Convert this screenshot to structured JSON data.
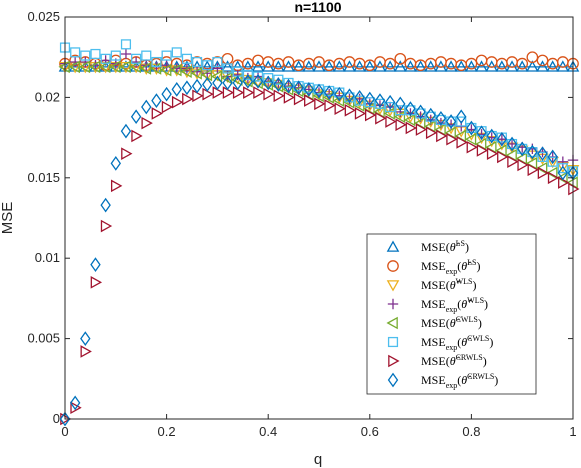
{
  "chart_data": {
    "type": "scatter",
    "title": "n=1100",
    "xlabel": "q",
    "ylabel": "MSE",
    "xlim": [
      0,
      1
    ],
    "ylim": [
      0,
      0.025
    ],
    "xticks": [
      0,
      0.2,
      0.4,
      0.6,
      0.8,
      1
    ],
    "xtick_labels": [
      "0",
      "0.2",
      "0.4",
      "0.6",
      "0.8",
      "1"
    ],
    "yticks": [
      0,
      0.005,
      0.01,
      0.015,
      0.02,
      0.025
    ],
    "ytick_labels": [
      "0",
      "0.005",
      "0.01",
      "0.015",
      "0.02",
      "0.025"
    ],
    "grid": false,
    "legend_position": "bottom-right",
    "x": [
      0,
      0.02,
      0.04,
      0.06,
      0.08,
      0.1,
      0.12,
      0.14,
      0.16,
      0.18,
      0.2,
      0.22,
      0.24,
      0.26,
      0.28,
      0.3,
      0.32,
      0.34,
      0.36,
      0.38,
      0.4,
      0.42,
      0.44,
      0.46,
      0.48,
      0.5,
      0.52,
      0.54,
      0.56,
      0.58,
      0.6,
      0.62,
      0.64,
      0.66,
      0.68,
      0.7,
      0.72,
      0.74,
      0.76,
      0.78,
      0.8,
      0.82,
      0.84,
      0.86,
      0.88,
      0.9,
      0.92,
      0.94,
      0.96,
      0.98,
      1
    ],
    "series": [
      {
        "name": "MSE(θ̂LS)",
        "marker": "triangle-up",
        "color": "#0072BD",
        "values": [
          0.0219,
          0.0219,
          0.0219,
          0.0219,
          0.0219,
          0.0219,
          0.0219,
          0.0219,
          0.0219,
          0.0219,
          0.0219,
          0.0219,
          0.0219,
          0.0219,
          0.0219,
          0.0219,
          0.0219,
          0.0219,
          0.0219,
          0.0219,
          0.0219,
          0.0219,
          0.0219,
          0.0219,
          0.0219,
          0.0219,
          0.0219,
          0.0219,
          0.0219,
          0.0219,
          0.0219,
          0.0219,
          0.0219,
          0.0219,
          0.0219,
          0.0219,
          0.0219,
          0.0219,
          0.0219,
          0.0219,
          0.0219,
          0.0219,
          0.0219,
          0.0219,
          0.0219,
          0.0219,
          0.0219,
          0.0219,
          0.0219,
          0.0219,
          0.0219
        ]
      },
      {
        "name": "MSEexp(θ̂LS)",
        "marker": "circle",
        "color": "#D95319",
        "values": [
          0.0221,
          0.0223,
          0.0222,
          0.0221,
          0.022,
          0.0223,
          0.0221,
          0.0222,
          0.022,
          0.0221,
          0.0222,
          0.0221,
          0.022,
          0.0222,
          0.0221,
          0.0222,
          0.0224,
          0.022,
          0.0221,
          0.0223,
          0.0222,
          0.0221,
          0.0222,
          0.022,
          0.0221,
          0.0222,
          0.022,
          0.0221,
          0.0222,
          0.0221,
          0.022,
          0.0222,
          0.0221,
          0.0224,
          0.0221,
          0.022,
          0.0221,
          0.0222,
          0.0221,
          0.022,
          0.0221,
          0.0223,
          0.0222,
          0.0221,
          0.0222,
          0.0221,
          0.0225,
          0.0223,
          0.0221,
          0.0222,
          0.0221
        ]
      },
      {
        "name": "MSE(θ̂WLS)",
        "marker": "triangle-down",
        "color": "#EDB120",
        "values": [
          0.0219,
          0.0219,
          0.0219,
          0.0219,
          0.0219,
          0.0219,
          0.0219,
          0.0219,
          0.0218,
          0.0218,
          0.0217,
          0.0217,
          0.0216,
          0.0215,
          0.0214,
          0.0214,
          0.0213,
          0.0212,
          0.0211,
          0.021,
          0.0209,
          0.0208,
          0.0206,
          0.0205,
          0.0204,
          0.0202,
          0.0201,
          0.02,
          0.0198,
          0.0197,
          0.0195,
          0.0193,
          0.0192,
          0.019,
          0.0188,
          0.0187,
          0.0185,
          0.0183,
          0.0181,
          0.0179,
          0.0177,
          0.0175,
          0.0173,
          0.0171,
          0.0169,
          0.0167,
          0.0164,
          0.0162,
          0.016,
          0.0157,
          0.0155
        ]
      },
      {
        "name": "MSEexp(θ̂WLS)",
        "marker": "plus",
        "color": "#7E2F8E",
        "values": [
          0.0221,
          0.0222,
          0.0222,
          0.022,
          0.0223,
          0.0221,
          0.0227,
          0.0222,
          0.022,
          0.0219,
          0.022,
          0.0218,
          0.0218,
          0.0216,
          0.0215,
          0.0218,
          0.0213,
          0.0214,
          0.0212,
          0.0213,
          0.021,
          0.0209,
          0.0207,
          0.0206,
          0.0205,
          0.0203,
          0.0202,
          0.0201,
          0.0199,
          0.0199,
          0.0196,
          0.0195,
          0.0194,
          0.0191,
          0.019,
          0.0188,
          0.0186,
          0.0184,
          0.0183,
          0.0182,
          0.018,
          0.0177,
          0.0175,
          0.0174,
          0.0171,
          0.0169,
          0.0168,
          0.0166,
          0.0163,
          0.016,
          0.0161
        ]
      },
      {
        "name": "MSE(θ̂CWLS)",
        "marker": "triangle-left",
        "color": "#77AC30",
        "values": [
          0.0219,
          0.0219,
          0.0219,
          0.0219,
          0.0219,
          0.0219,
          0.0219,
          0.0219,
          0.0218,
          0.0218,
          0.0217,
          0.0217,
          0.0216,
          0.0215,
          0.0214,
          0.0213,
          0.0212,
          0.0211,
          0.021,
          0.0209,
          0.0208,
          0.0207,
          0.0205,
          0.0204,
          0.0202,
          0.0201,
          0.02,
          0.0198,
          0.0197,
          0.0195,
          0.0193,
          0.0191,
          0.019,
          0.0188,
          0.0186,
          0.0184,
          0.0182,
          0.018,
          0.0178,
          0.0176,
          0.0174,
          0.0171,
          0.0169,
          0.0167,
          0.0164,
          0.0162,
          0.0159,
          0.0156,
          0.0153,
          0.015,
          0.0147
        ]
      },
      {
        "name": "MSEexp(θ̂CWLS)",
        "marker": "square",
        "color": "#4DBEEE",
        "values": [
          0.0231,
          0.0228,
          0.0226,
          0.0227,
          0.0224,
          0.0226,
          0.0233,
          0.0224,
          0.0226,
          0.0222,
          0.0226,
          0.0228,
          0.0224,
          0.0222,
          0.022,
          0.0222,
          0.0218,
          0.0216,
          0.0214,
          0.0213,
          0.0212,
          0.0211,
          0.0209,
          0.0207,
          0.0206,
          0.0205,
          0.0204,
          0.0203,
          0.02,
          0.0198,
          0.0197,
          0.0196,
          0.0194,
          0.0192,
          0.0192,
          0.019,
          0.0188,
          0.0186,
          0.0185,
          0.0185,
          0.0181,
          0.0179,
          0.0176,
          0.0175,
          0.0171,
          0.0168,
          0.0166,
          0.0163,
          0.016,
          0.0156,
          0.0154
        ]
      },
      {
        "name": "MSE(θ̂CRWLS)",
        "marker": "triangle-right",
        "color": "#A2142F",
        "values": [
          0,
          0.0007,
          0.0042,
          0.0085,
          0.012,
          0.0145,
          0.0165,
          0.0176,
          0.0184,
          0.019,
          0.0194,
          0.0197,
          0.0199,
          0.0201,
          0.0202,
          0.0203,
          0.0203,
          0.0203,
          0.0203,
          0.0203,
          0.0202,
          0.0201,
          0.02,
          0.0199,
          0.0198,
          0.0196,
          0.0195,
          0.0193,
          0.0192,
          0.019,
          0.0189,
          0.0187,
          0.0185,
          0.0183,
          0.0181,
          0.018,
          0.0178,
          0.0176,
          0.0174,
          0.0172,
          0.0169,
          0.0167,
          0.0165,
          0.0163,
          0.016,
          0.0158,
          0.0155,
          0.0153,
          0.015,
          0.0147,
          0.0143
        ]
      },
      {
        "name": "MSEexp(θ̂CRWLS)",
        "marker": "diamond",
        "color": "#0072BD",
        "values": [
          0,
          0.001,
          0.005,
          0.0096,
          0.0133,
          0.0159,
          0.0179,
          0.0188,
          0.0194,
          0.0198,
          0.0202,
          0.0205,
          0.0206,
          0.0207,
          0.0208,
          0.0209,
          0.0209,
          0.0209,
          0.021,
          0.021,
          0.0209,
          0.0208,
          0.0207,
          0.0206,
          0.0205,
          0.0204,
          0.0203,
          0.0202,
          0.0201,
          0.02,
          0.0199,
          0.0198,
          0.0197,
          0.0196,
          0.0193,
          0.0191,
          0.0189,
          0.0187,
          0.0185,
          0.0188,
          0.0181,
          0.0178,
          0.0176,
          0.0174,
          0.0171,
          0.0168,
          0.0166,
          0.0165,
          0.0163,
          0.0153,
          0.0153
        ]
      }
    ],
    "legend": [
      {
        "base": "MSE",
        "sub": "",
        "sup": "LS"
      },
      {
        "base": "MSE",
        "sub": "exp",
        "sup": "LS"
      },
      {
        "base": "MSE",
        "sub": "",
        "sup": "WLS"
      },
      {
        "base": "MSE",
        "sub": "exp",
        "sup": "WLS"
      },
      {
        "base": "MSE",
        "sub": "",
        "sup": "CWLS"
      },
      {
        "base": "MSE",
        "sub": "exp",
        "sup": "CWLS"
      },
      {
        "base": "MSE",
        "sub": "",
        "sup": "CRWLS"
      },
      {
        "base": "MSE",
        "sub": "exp",
        "sup": "CRWLS"
      }
    ]
  }
}
